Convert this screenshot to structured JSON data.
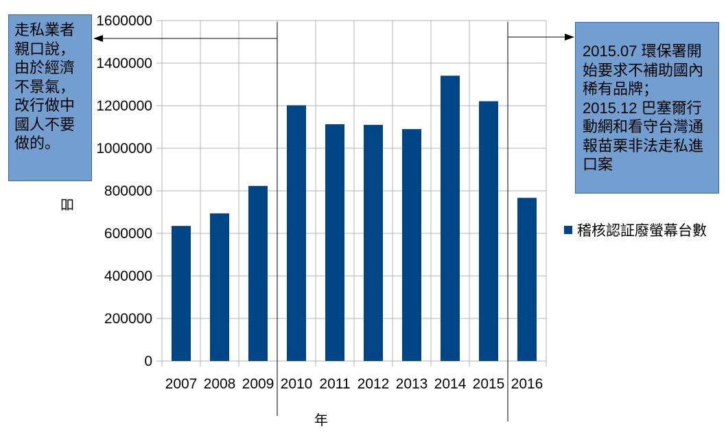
{
  "chart_data": {
    "type": "bar",
    "title": "",
    "xlabel": "年",
    "ylabel": "吅",
    "categories": [
      "2007",
      "2008",
      "2009",
      "2010",
      "2011",
      "2012",
      "2013",
      "2014",
      "2015",
      "2016"
    ],
    "series": [
      {
        "name": "稽核認証廢螢幕台數",
        "values": [
          635000,
          694000,
          823000,
          1202000,
          1113000,
          1110000,
          1090000,
          1341000,
          1221000,
          767000
        ]
      }
    ],
    "ylim": [
      0,
      1600000
    ],
    "yticks": [
      "0",
      "200000",
      "400000",
      "600000",
      "800000",
      "1000000",
      "1200000",
      "1400000",
      "1600000"
    ],
    "grid": true,
    "legend_position": "right",
    "bar_color": "#004586",
    "annotations": {
      "left": "走私業者親口說，由於經濟不景氣，改行做中國人不要做的。",
      "right": "2015.07 環保署開始要求不補助國內稀有品牌；2015.12 巴塞爾行動網和看守台灣通報苗栗非法走私進口案"
    }
  }
}
